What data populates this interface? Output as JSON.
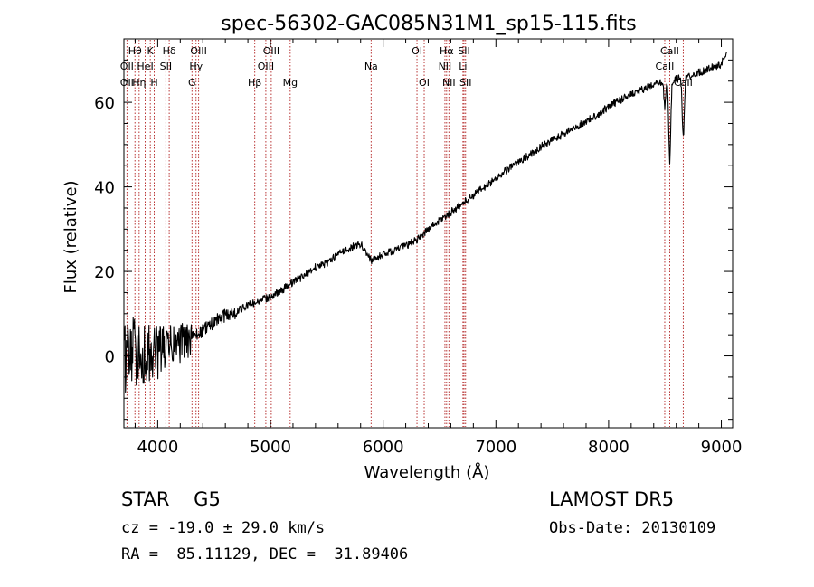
{
  "chart_data": {
    "type": "line",
    "title": "spec-56302-GAC085N31M1_sp15-115.fits",
    "xlabel": "Wavelength (Å)",
    "ylabel": "Flux (relative)",
    "xlim": [
      3700,
      9100
    ],
    "ylim": [
      -17,
      75
    ],
    "xticks": [
      4000,
      5000,
      6000,
      7000,
      8000,
      9000
    ],
    "yticks": [
      0,
      20,
      40,
      60
    ],
    "line_color": "#000000",
    "marker_color": "#b22222",
    "spectral_lines": [
      {
        "label": "Hθ",
        "wavelength": 3798,
        "row": 0
      },
      {
        "label": "K",
        "wavelength": 3934,
        "row": 0
      },
      {
        "label": "Hδ",
        "wavelength": 4102,
        "row": 0
      },
      {
        "label": "OIII",
        "wavelength": 4363,
        "row": 0
      },
      {
        "label": "OIII",
        "wavelength": 5007,
        "row": 0
      },
      {
        "label": "OI",
        "wavelength": 6300,
        "row": 0
      },
      {
        "label": "Hα",
        "wavelength": 6563,
        "row": 0
      },
      {
        "label": "SII",
        "wavelength": 6717,
        "row": 0
      },
      {
        "label": "CaII",
        "wavelength": 8542,
        "row": 0
      },
      {
        "label": "OII",
        "wavelength": 3727,
        "row": 1
      },
      {
        "label": "HeI",
        "wavelength": 3889,
        "row": 1
      },
      {
        "label": "SII",
        "wavelength": 4072,
        "row": 1
      },
      {
        "label": "Hγ",
        "wavelength": 4340,
        "row": 1
      },
      {
        "label": "OIII",
        "wavelength": 4959,
        "row": 1
      },
      {
        "label": "Na",
        "wavelength": 5893,
        "row": 1
      },
      {
        "label": "NII",
        "wavelength": 6548,
        "row": 1
      },
      {
        "label": "Li",
        "wavelength": 6708,
        "row": 1
      },
      {
        "label": "CaII",
        "wavelength": 8498,
        "row": 1
      },
      {
        "label": "OII",
        "wavelength": 3727,
        "row": 2
      },
      {
        "label": "Hη",
        "wavelength": 3835,
        "row": 2
      },
      {
        "label": "H",
        "wavelength": 3969,
        "row": 2
      },
      {
        "label": "G",
        "wavelength": 4304,
        "row": 2
      },
      {
        "label": "Hβ",
        "wavelength": 4861,
        "row": 2
      },
      {
        "label": "Mg",
        "wavelength": 5175,
        "row": 2
      },
      {
        "label": "OI",
        "wavelength": 6364,
        "row": 2
      },
      {
        "label": "NII",
        "wavelength": 6583,
        "row": 2
      },
      {
        "label": "SII",
        "wavelength": 6731,
        "row": 2
      },
      {
        "label": "CaII",
        "wavelength": 8662,
        "row": 2
      }
    ],
    "continuum": [
      [
        3700,
        0
      ],
      [
        3800,
        1
      ],
      [
        3900,
        0
      ],
      [
        4000,
        1
      ],
      [
        4100,
        2
      ],
      [
        4200,
        3
      ],
      [
        4300,
        4
      ],
      [
        4400,
        6
      ],
      [
        4500,
        8
      ],
      [
        4600,
        9.5
      ],
      [
        4700,
        10.5
      ],
      [
        4800,
        12
      ],
      [
        4900,
        13
      ],
      [
        5000,
        14
      ],
      [
        5100,
        15.5
      ],
      [
        5200,
        17.5
      ],
      [
        5300,
        19
      ],
      [
        5400,
        21
      ],
      [
        5500,
        22
      ],
      [
        5600,
        24
      ],
      [
        5700,
        25.5
      ],
      [
        5800,
        26.5
      ],
      [
        5900,
        22.5
      ],
      [
        6000,
        24
      ],
      [
        6100,
        25
      ],
      [
        6200,
        26
      ],
      [
        6300,
        27.5
      ],
      [
        6400,
        30
      ],
      [
        6500,
        32
      ],
      [
        6600,
        34
      ],
      [
        6700,
        36
      ],
      [
        6800,
        38
      ],
      [
        6900,
        40
      ],
      [
        7000,
        42
      ],
      [
        7100,
        44
      ],
      [
        7200,
        46
      ],
      [
        7300,
        47.5
      ],
      [
        7400,
        49.5
      ],
      [
        7500,
        51
      ],
      [
        7600,
        52.5
      ],
      [
        7700,
        54
      ],
      [
        7800,
        55.5
      ],
      [
        7900,
        57
      ],
      [
        8000,
        59
      ],
      [
        8100,
        60.5
      ],
      [
        8200,
        62
      ],
      [
        8300,
        63
      ],
      [
        8400,
        64
      ],
      [
        8500,
        65
      ],
      [
        8600,
        65.5
      ],
      [
        8700,
        66
      ],
      [
        8800,
        67
      ],
      [
        8900,
        68
      ],
      [
        9000,
        69
      ],
      [
        9050,
        72
      ]
    ],
    "absorption_features": [
      {
        "wavelength": 8498,
        "depth": 6,
        "width": 8
      },
      {
        "wavelength": 8542,
        "depth": 19,
        "width": 9
      },
      {
        "wavelength": 8662,
        "depth": 14,
        "width": 9
      }
    ]
  },
  "info": {
    "class_text": "STAR    G5",
    "survey": "LAMOST DR5",
    "velocity": "cz = -19.0 ± 29.0 km/s",
    "obs_date": "Obs-Date: 20130109",
    "coords": "RA =  85.11129, DEC =  31.89406"
  }
}
